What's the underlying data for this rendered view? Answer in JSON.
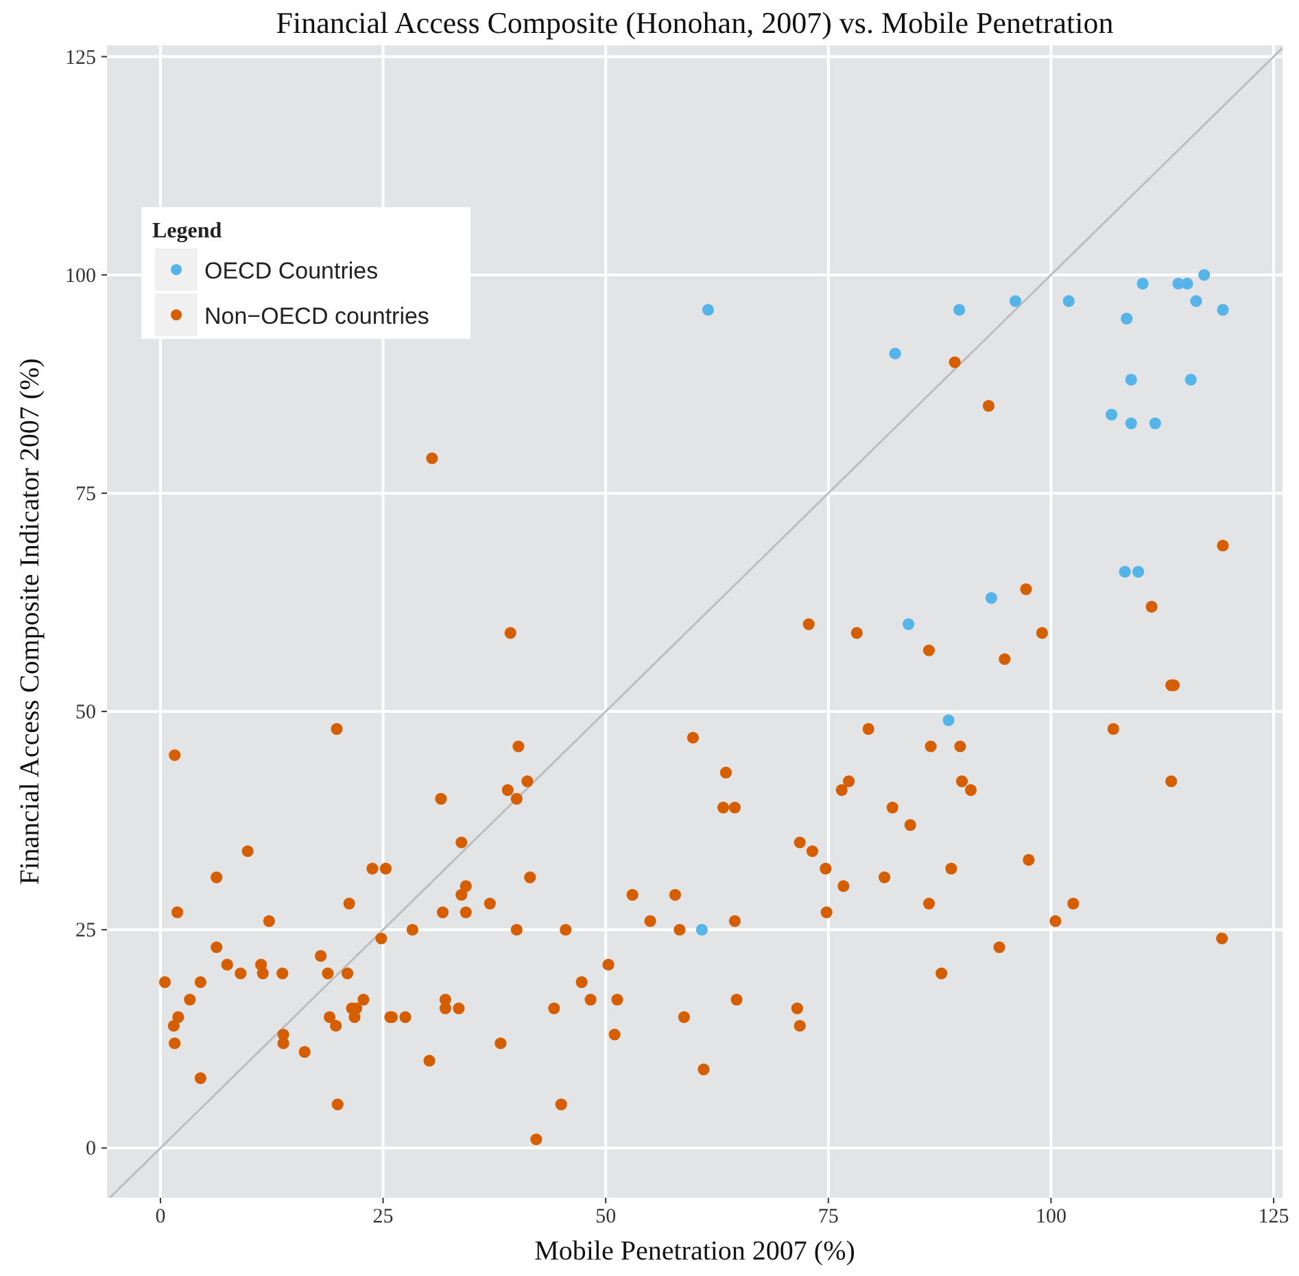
{
  "chart_data": {
    "type": "scatter",
    "title": "Financial Access Composite (Honohan, 2007) vs. Mobile Penetration",
    "xlabel": "Mobile Penetration 2007 (%)",
    "ylabel": "Financial Access Composite Indicator 2007 (%)",
    "legend_title": "Legend",
    "xlim": [
      -6,
      126
    ],
    "ylim": [
      -5.7,
      126.3
    ],
    "xticks": [
      0,
      25,
      50,
      75,
      100,
      125
    ],
    "yticks": [
      0,
      25,
      50,
      75,
      100,
      125
    ],
    "grid": true,
    "legend": "top left",
    "marker": "circle",
    "series": [
      {
        "name": "OECD Countries",
        "color": "#56b4e9",
        "x": [
          61.5,
          82.5,
          89.7,
          96,
          102,
          110.3,
          114.3,
          115.3,
          117.2,
          116.3,
          108.5,
          119.3,
          106.8,
          109,
          109,
          111.7,
          115.7,
          108.3,
          109.8,
          93.3,
          84,
          88.5,
          60.8
        ],
        "values": [
          96,
          91,
          96,
          97,
          97,
          99,
          99,
          99,
          100,
          97,
          95,
          96,
          84,
          88,
          83,
          83,
          88,
          66,
          66,
          63,
          60,
          49,
          25
        ]
      },
      {
        "name": "Non−OECD countries",
        "color": "#d55e00",
        "x": [
          89.2,
          93,
          30.5,
          119.3,
          97.2,
          111.3,
          72.8,
          78.2,
          39.3,
          86.3,
          99,
          94.8,
          113.5,
          113.8,
          19.8,
          107,
          79.5,
          59.8,
          86.5,
          40.2,
          89.8,
          1.6,
          63.5,
          76.5,
          77.3,
          90,
          91,
          113.5,
          39,
          41.2,
          31.5,
          40,
          82.2,
          63.2,
          64.5,
          84.2,
          9.8,
          33.8,
          71.8,
          73.2,
          97.5,
          6.3,
          41.5,
          74.7,
          88.8,
          23.8,
          25.3,
          81.3,
          76.7,
          34.3,
          33.8,
          53,
          57.8,
          21.2,
          37,
          86.3,
          102.5,
          1.9,
          31.7,
          34.3,
          74.8,
          12.2,
          55,
          64.5,
          100.5,
          28.3,
          40,
          45.5,
          58.3,
          24.8,
          119.2,
          6.3,
          94.2,
          18,
          11.3,
          7.5,
          50.3,
          11.5,
          9,
          13.7,
          18.8,
          21,
          87.7,
          0.5,
          4.5,
          47.3,
          3.3,
          22.8,
          32,
          48.3,
          51.3,
          64.7,
          1.5,
          2,
          19,
          21.8,
          25.8,
          26,
          27.5,
          58.8,
          21.5,
          22,
          32,
          33.5,
          44.2,
          71.5,
          71.8,
          19.7,
          13.8,
          13.8,
          51,
          1.6,
          16.2,
          38.2,
          30.2,
          61,
          4.5,
          19.9,
          45,
          42.2
        ],
        "values": [
          90,
          85,
          79,
          69,
          64,
          62,
          60,
          59,
          59,
          57,
          59,
          56,
          53,
          53,
          48,
          48,
          48,
          47,
          46,
          46,
          46,
          45,
          43,
          41,
          42,
          42,
          41,
          42,
          41,
          42,
          40,
          40,
          39,
          39,
          39,
          37,
          34,
          35,
          35,
          34,
          33,
          31,
          31,
          32,
          32,
          32,
          32,
          31,
          30,
          30,
          29,
          29,
          29,
          28,
          28,
          28,
          28,
          27,
          27,
          27,
          27,
          26,
          26,
          26,
          26,
          25,
          25,
          25,
          25,
          24,
          24,
          23,
          23,
          22,
          21,
          21,
          21,
          20,
          20,
          20,
          20,
          20,
          20,
          19,
          19,
          19,
          17,
          17,
          17,
          17,
          17,
          17,
          14,
          15,
          15,
          15,
          15,
          15,
          15,
          15,
          16,
          16,
          16,
          16,
          16,
          16,
          14,
          14,
          13,
          12,
          13,
          12,
          11,
          12,
          10,
          9,
          8,
          5,
          5,
          1
        ]
      },
      {
        "type": "line",
        "marker": "none",
        "color": "#bdbdbd",
        "x": [
          -5.7,
          126
        ],
        "values": [
          -5.7,
          126
        ]
      }
    ]
  }
}
